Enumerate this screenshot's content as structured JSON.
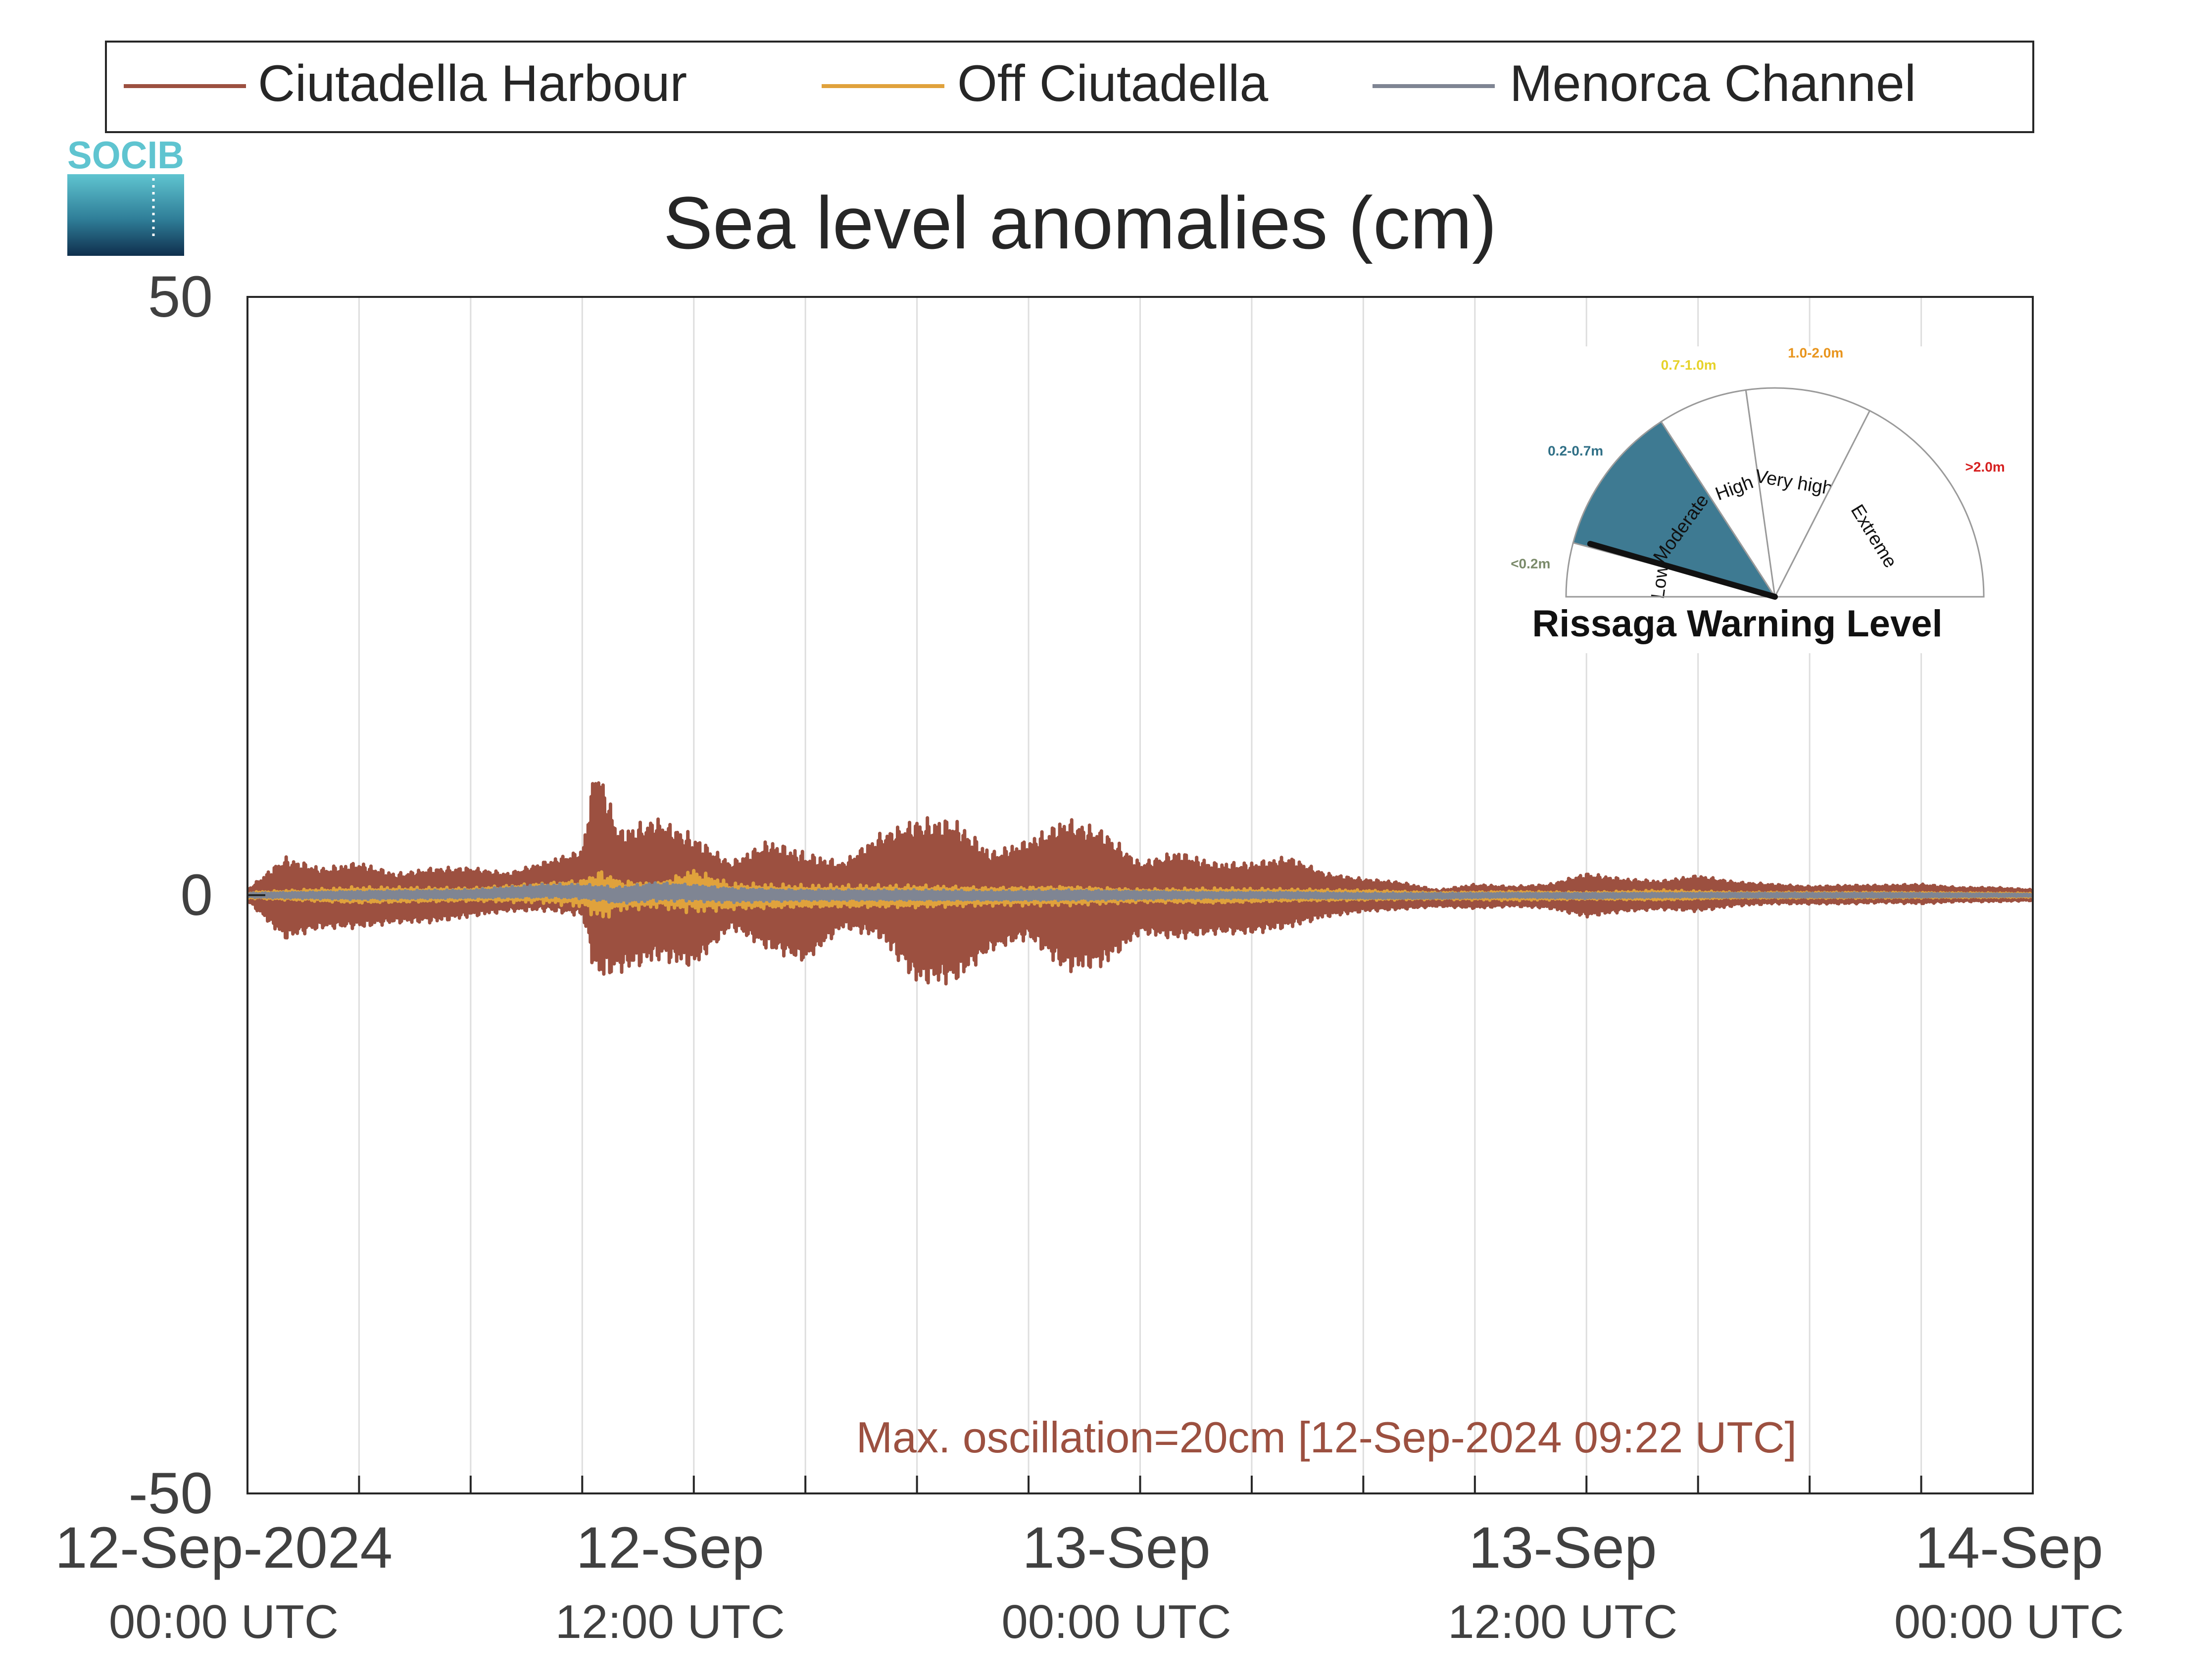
{
  "logo": {
    "text": "SOCIB"
  },
  "legend": {
    "items": [
      {
        "label": "Ciutadella Harbour",
        "color": "#9c5040"
      },
      {
        "label": "Off Ciutadella",
        "color": "#e0a23c"
      },
      {
        "label": "Menorca Channel",
        "color": "#7f8593"
      }
    ]
  },
  "gauge": {
    "title": "Rissaga Warning Level",
    "current_level": "Moderate",
    "sectors": [
      {
        "name": "Low",
        "range": "<0.2m",
        "range_color": "#7a8a6a"
      },
      {
        "name": "Moderate",
        "range": "0.2-0.7m",
        "range_color": "#2f6f86",
        "fill": "#3e7a92"
      },
      {
        "name": "High",
        "range": "0.7-1.0m",
        "range_color": "#e6d22a"
      },
      {
        "name": "Very high",
        "range": "1.0-2.0m",
        "range_color": "#e8941c"
      },
      {
        "name": "Extreme",
        "range": ">2.0m",
        "range_color": "#d62020"
      }
    ]
  },
  "annotation": {
    "text": "Max. oscillation=20cm [12-Sep-2024 09:22 UTC]",
    "color": "#9c5040"
  },
  "chart_data": {
    "type": "line",
    "title": "Sea level anomalies (cm)",
    "xlabel": "",
    "ylabel": "",
    "ylim": [
      -50,
      50
    ],
    "yticks": [
      -50,
      0,
      50
    ],
    "xlim_hours": [
      0,
      48
    ],
    "x_unit": "hours since 12-Sep-2024 00:00 UTC",
    "xticks": [
      {
        "hour": 0,
        "date": "12-Sep-2024",
        "time": "00:00 UTC"
      },
      {
        "hour": 12,
        "date": "12-Sep",
        "time": "12:00 UTC"
      },
      {
        "hour": 24,
        "date": "13-Sep",
        "time": "00:00 UTC"
      },
      {
        "hour": 36,
        "date": "13-Sep",
        "time": "12:00 UTC"
      },
      {
        "hour": 48,
        "date": "14-Sep",
        "time": "00:00 UTC"
      }
    ],
    "grid": "vertical",
    "series": [
      {
        "name": "Ciutadella Harbour",
        "color": "#9c5040",
        "kind": "envelope",
        "x": [
          0,
          1,
          2,
          3,
          4,
          5,
          6,
          7,
          8,
          9,
          9.37,
          10,
          11,
          12,
          13,
          14,
          15,
          16,
          17,
          18,
          19,
          20,
          21,
          22,
          23,
          24,
          25,
          26,
          27,
          28,
          29,
          30,
          31,
          32,
          33,
          34,
          35,
          36,
          37,
          38,
          39,
          40,
          41,
          42,
          43,
          44,
          45,
          46,
          47,
          48
        ],
        "upper": [
          0.5,
          3.5,
          2.5,
          3,
          2,
          2.5,
          2.5,
          2,
          3,
          4,
          12,
          6,
          7,
          5.5,
          3,
          5,
          4,
          3,
          5.5,
          7,
          7,
          4,
          5,
          7,
          6,
          3,
          4,
          3,
          3,
          3.5,
          2,
          1.5,
          1.2,
          0.5,
          1,
          0.8,
          1,
          2,
          1.5,
          1.3,
          1.8,
          1.2,
          1,
          0.8,
          0.9,
          0.9,
          1,
          0.7,
          0.7,
          0.5
        ],
        "lower": [
          -0.5,
          -4,
          -3,
          -3,
          -2.5,
          -2.5,
          -2,
          -1.5,
          -1.5,
          -2,
          -8,
          -7,
          -6,
          -6.5,
          -3,
          -5,
          -6,
          -3,
          -4,
          -8,
          -8,
          -5,
          -4,
          -7,
          -6.5,
          -3.5,
          -4,
          -3.5,
          -3.5,
          -3,
          -2,
          -1.5,
          -1.3,
          -1,
          -1.2,
          -1,
          -1.2,
          -2,
          -1.5,
          -1.3,
          -1.5,
          -1,
          -0.8,
          -0.8,
          -0.8,
          -0.7,
          -0.8,
          -0.6,
          -0.6,
          -0.5
        ]
      },
      {
        "name": "Off Ciutadella",
        "color": "#e0a23c",
        "kind": "envelope",
        "x": [
          0,
          3,
          6,
          8,
          9,
          9.5,
          10,
          11,
          12,
          13,
          15,
          18,
          20,
          22,
          24,
          26,
          28,
          30,
          32,
          34,
          36,
          38,
          40,
          44,
          48
        ],
        "upper": [
          0.3,
          0.8,
          0.7,
          1.2,
          1.5,
          2.5,
          1.5,
          1.2,
          2.5,
          1.2,
          1,
          1,
          0.8,
          0.9,
          0.6,
          0.7,
          0.6,
          0.5,
          0.3,
          0.4,
          0.3,
          0.5,
          0.3,
          0.3,
          0.2
        ],
        "lower": [
          -0.3,
          -0.8,
          -0.6,
          -0.8,
          -1.2,
          -2.5,
          -1.5,
          -1.2,
          -1.8,
          -1.4,
          -1.2,
          -1.2,
          -1,
          -1,
          -0.7,
          -0.8,
          -0.6,
          -0.5,
          -0.4,
          -0.5,
          -0.4,
          -0.5,
          -0.3,
          -0.3,
          -0.2
        ]
      },
      {
        "name": "Menorca Channel",
        "color": "#7f8593",
        "kind": "envelope",
        "x": [
          0,
          3,
          6,
          8,
          9,
          10,
          11,
          12,
          13,
          15,
          18,
          20,
          22,
          24,
          26,
          28,
          30,
          32,
          34,
          36,
          38,
          40,
          44,
          48
        ],
        "upper": [
          0.2,
          0.4,
          0.5,
          1,
          1,
          0.8,
          1.2,
          1,
          0.7,
          0.5,
          0.5,
          0.4,
          0.5,
          0.4,
          0.3,
          0.3,
          0.2,
          0.2,
          0.2,
          0.2,
          0.2,
          0.2,
          0.2,
          0.1
        ],
        "lower": [
          -0.2,
          -0.4,
          -0.3,
          -0.3,
          -0.4,
          -0.8,
          -0.6,
          -0.6,
          -0.7,
          -0.5,
          -0.5,
          -0.5,
          -0.5,
          -0.4,
          -0.3,
          -0.3,
          -0.3,
          -0.3,
          -0.2,
          -0.3,
          -0.2,
          -0.2,
          -0.2,
          -0.1
        ]
      }
    ]
  }
}
